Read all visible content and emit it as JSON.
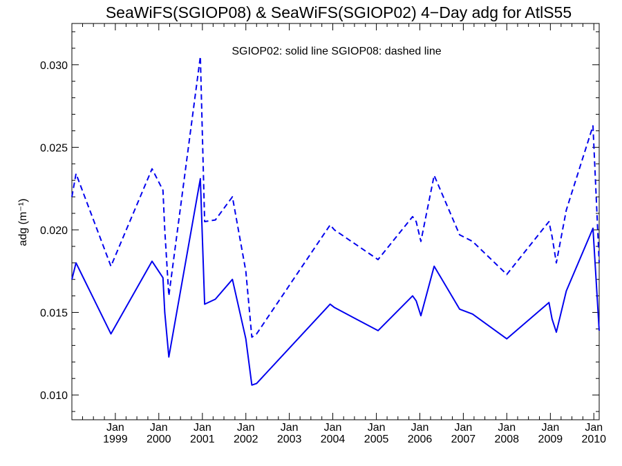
{
  "chart_data": {
    "type": "line",
    "title": "SeaWiFS(SGIOP08) & SeaWiFS(SGIOP02) 4−Day adg for AtlS55",
    "ylabel": "adg (m⁻¹)",
    "annotation": "SGIOP02: solid line   SGIOP08: dashed line",
    "ylim": [
      0.0085,
      0.0325
    ],
    "xlim": [
      "1998-01-01",
      "2010-02-15"
    ],
    "y_ticks": [
      "0.010",
      "0.015",
      "0.020",
      "0.025",
      "0.030"
    ],
    "x_ticks": [
      {
        "month": "Jan",
        "year": "1999",
        "date": "1999-01-01"
      },
      {
        "month": "Jan",
        "year": "2000",
        "date": "2000-01-01"
      },
      {
        "month": "Jan",
        "year": "2001",
        "date": "2001-01-01"
      },
      {
        "month": "Jan",
        "year": "2002",
        "date": "2002-01-01"
      },
      {
        "month": "Jan",
        "year": "2003",
        "date": "2003-01-01"
      },
      {
        "month": "Jan",
        "year": "2004",
        "date": "2004-01-01"
      },
      {
        "month": "Jan",
        "year": "2005",
        "date": "2005-01-01"
      },
      {
        "month": "Jan",
        "year": "2006",
        "date": "2006-01-01"
      },
      {
        "month": "Jan",
        "year": "2007",
        "date": "2007-01-01"
      },
      {
        "month": "Jan",
        "year": "2008",
        "date": "2008-01-01"
      },
      {
        "month": "Jan",
        "year": "2009",
        "date": "2009-01-01"
      },
      {
        "month": "Jan",
        "year": "2010",
        "date": "2010-01-01"
      }
    ],
    "grid": false,
    "series": [
      {
        "name": "SGIOP02",
        "style": "solid",
        "color": "#0000ee",
        "points": [
          [
            "1998-01-01",
            0.017
          ],
          [
            "1998-02-05",
            0.018
          ],
          [
            "1998-11-25",
            0.0137
          ],
          [
            "1999-11-05",
            0.0181
          ],
          [
            "2000-02-05",
            0.0171
          ],
          [
            "2000-02-20",
            0.015
          ],
          [
            "2000-03-25",
            0.0123
          ],
          [
            "2000-12-15",
            0.0231
          ],
          [
            "2001-01-20",
            0.0155
          ],
          [
            "2001-04-20",
            0.0158
          ],
          [
            "2001-09-10",
            0.017
          ],
          [
            "2002-01-01",
            0.0134
          ],
          [
            "2002-02-20",
            0.0106
          ],
          [
            "2002-04-01",
            0.0107
          ],
          [
            "2003-12-10",
            0.0155
          ],
          [
            "2004-01-15",
            0.0153
          ],
          [
            "2005-01-15",
            0.0139
          ],
          [
            "2005-11-01",
            0.016
          ],
          [
            "2005-12-01",
            0.0157
          ],
          [
            "2006-01-10",
            0.0148
          ],
          [
            "2006-05-01",
            0.0178
          ],
          [
            "2006-12-01",
            0.0152
          ],
          [
            "2007-03-20",
            0.0149
          ],
          [
            "2008-01-01",
            0.0134
          ],
          [
            "2008-12-20",
            0.0156
          ],
          [
            "2009-01-15",
            0.0146
          ],
          [
            "2009-02-20",
            0.0138
          ],
          [
            "2009-05-15",
            0.0163
          ],
          [
            "2009-12-25",
            0.0201
          ],
          [
            "2010-02-15",
            0.0139
          ]
        ]
      },
      {
        "name": "SGIOP08",
        "style": "dashed",
        "color": "#0000ee",
        "points": [
          [
            "1998-01-01",
            0.022
          ],
          [
            "1998-02-05",
            0.0234
          ],
          [
            "1998-11-25",
            0.0178
          ],
          [
            "1999-11-05",
            0.0237
          ],
          [
            "2000-02-05",
            0.0224
          ],
          [
            "2000-02-20",
            0.02
          ],
          [
            "2000-03-25",
            0.016
          ],
          [
            "2000-12-15",
            0.0305
          ],
          [
            "2001-01-20",
            0.0205
          ],
          [
            "2001-04-20",
            0.0206
          ],
          [
            "2001-09-10",
            0.022
          ],
          [
            "2002-01-01",
            0.0175
          ],
          [
            "2002-02-20",
            0.0135
          ],
          [
            "2002-04-01",
            0.0137
          ],
          [
            "2003-12-10",
            0.0203
          ],
          [
            "2004-01-15",
            0.02
          ],
          [
            "2005-01-15",
            0.0182
          ],
          [
            "2005-11-01",
            0.0208
          ],
          [
            "2005-12-01",
            0.0205
          ],
          [
            "2006-01-10",
            0.0193
          ],
          [
            "2006-05-01",
            0.0233
          ],
          [
            "2006-12-01",
            0.0197
          ],
          [
            "2007-03-20",
            0.0193
          ],
          [
            "2008-01-01",
            0.0173
          ],
          [
            "2008-12-20",
            0.0205
          ],
          [
            "2009-01-15",
            0.0196
          ],
          [
            "2009-02-20",
            0.018
          ],
          [
            "2009-05-15",
            0.0212
          ],
          [
            "2009-12-25",
            0.0263
          ],
          [
            "2010-02-15",
            0.018
          ]
        ]
      }
    ]
  }
}
